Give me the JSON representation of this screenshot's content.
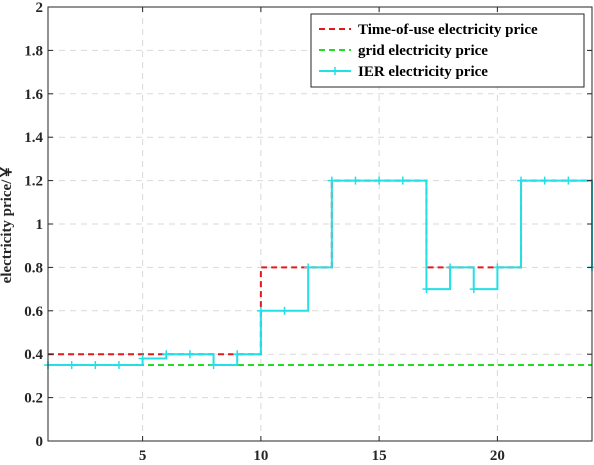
{
  "chart_data": {
    "type": "line",
    "step": true,
    "xlabel": "",
    "ylabel": "electricity price/￥",
    "xlim": [
      1,
      24
    ],
    "ylim": [
      0,
      2
    ],
    "x_ticks": [
      5,
      10,
      15,
      20
    ],
    "y_ticks": [
      0,
      0.2,
      0.4,
      0.6,
      0.8,
      1,
      1.2,
      1.4,
      1.6,
      1.8,
      2
    ],
    "grid": true,
    "legend_position": "top-right",
    "series": [
      {
        "name": "Time-of-use electricity price",
        "color": "#e31a1c",
        "style": "dashed",
        "x": [
          1,
          2,
          3,
          4,
          5,
          6,
          7,
          8,
          9,
          10,
          11,
          12,
          13,
          14,
          15,
          16,
          17,
          18,
          19,
          20,
          21,
          22,
          23,
          24
        ],
        "values": [
          0.4,
          0.4,
          0.4,
          0.4,
          0.4,
          0.4,
          0.4,
          0.4,
          0.4,
          0.8,
          0.8,
          0.8,
          1.2,
          1.2,
          1.2,
          1.2,
          0.8,
          0.8,
          0.8,
          0.8,
          1.2,
          1.2,
          1.2,
          1.2
        ]
      },
      {
        "name": "grid electricity price",
        "color": "#22dd22",
        "style": "dashed",
        "x": [
          1,
          2,
          3,
          4,
          5,
          6,
          7,
          8,
          9,
          10,
          11,
          12,
          13,
          14,
          15,
          16,
          17,
          18,
          19,
          20,
          21,
          22,
          23,
          24
        ],
        "values": [
          0.35,
          0.35,
          0.35,
          0.35,
          0.35,
          0.35,
          0.35,
          0.35,
          0.35,
          0.35,
          0.35,
          0.35,
          0.35,
          0.35,
          0.35,
          0.35,
          0.35,
          0.35,
          0.35,
          0.35,
          0.35,
          0.35,
          0.35,
          0.35
        ]
      },
      {
        "name": "IER electricity price",
        "color": "#22e0e6",
        "style": "solid",
        "marker": "+",
        "x": [
          1,
          2,
          3,
          4,
          5,
          6,
          7,
          8,
          9,
          10,
          11,
          12,
          13,
          14,
          15,
          16,
          17,
          18,
          19,
          20,
          21,
          22,
          23,
          24
        ],
        "values": [
          0.35,
          0.35,
          0.35,
          0.35,
          0.38,
          0.4,
          0.4,
          0.35,
          0.4,
          0.6,
          0.6,
          0.8,
          1.2,
          1.2,
          1.2,
          1.2,
          0.7,
          0.8,
          0.7,
          0.8,
          1.2,
          1.2,
          1.2,
          0.8
        ]
      }
    ]
  }
}
